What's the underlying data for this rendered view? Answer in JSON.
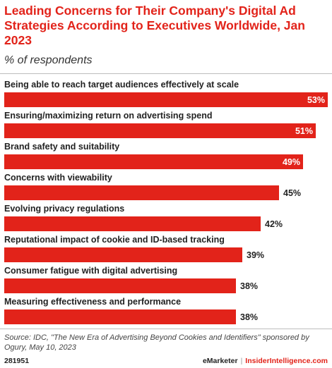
{
  "chart_data": {
    "type": "bar",
    "orientation": "horizontal",
    "title": "Leading Concerns for Their Company's Digital Ad Strategies According to Executives Worldwide, Jan 2023",
    "subtitle": "% of respondents",
    "categories": [
      "Being able to reach target audiences effectively at scale",
      "Ensuring/maximizing return on advertising spend",
      "Brand safety and suitability",
      "Concerns with viewability",
      "Evolving privacy regulations",
      "Reputational impact of cookie and ID-based tracking",
      "Consumer fatigue with digital advertising",
      "Measuring effectiveness and performance"
    ],
    "values": [
      53,
      51,
      49,
      45,
      42,
      39,
      38,
      38
    ],
    "value_suffix": "%",
    "xlim": [
      0,
      53
    ],
    "grid": false,
    "legend": "none",
    "bar_color": "#e2231a"
  },
  "footer": {
    "source": "Source: IDC, \"The New Era of Advertising Beyond Cookies and Identifiers\" sponsored by Ogury, May 10, 2023",
    "chart_id": "281951",
    "brand": "eMarketer",
    "separator": "|",
    "brand2": "InsiderIntelligence.com"
  }
}
